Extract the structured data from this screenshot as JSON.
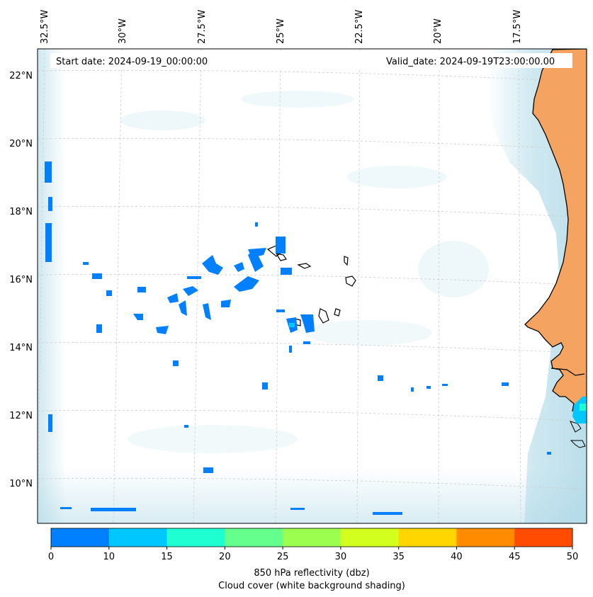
{
  "header": {
    "start_date": "Start date: 2024-09-19_00:00:00",
    "valid_date": "Valid_date: 2024-09-19T23:00:00.00"
  },
  "axes": {
    "longitude_labels": [
      "32.5°W",
      "30°W",
      "27.5°W",
      "25°W",
      "22.5°W",
      "20°W",
      "17.5°W"
    ],
    "latitude_labels": [
      "22°N",
      "20°N",
      "18°N",
      "16°N",
      "14°N",
      "12°N",
      "10°N"
    ]
  },
  "colorbar": {
    "ticks": [
      "0",
      "10",
      "15",
      "20",
      "25",
      "30",
      "35",
      "40",
      "45",
      "50"
    ],
    "colors": [
      "#0080ff",
      "#00c8ff",
      "#1effd2",
      "#64ff8c",
      "#9cff50",
      "#d2ff1e",
      "#ffd600",
      "#ff8c00",
      "#ff4c00"
    ],
    "label_line1": "850 hPa reflectivity (dbz)",
    "label_line2": "Cloud cover (white background shading)"
  },
  "colors": {
    "land": "#f4a460",
    "cloud": "#a9d6e5",
    "reflectivity_low": "#0080ff"
  }
}
